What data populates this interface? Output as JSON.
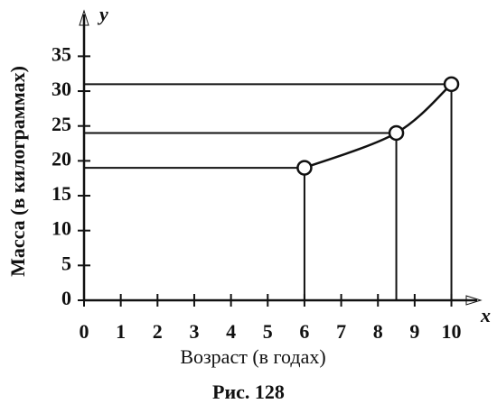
{
  "chart_data": {
    "type": "line",
    "caption": "Рис. 128",
    "x_axis_name": "x",
    "y_axis_name": "y",
    "x_label": "Возраст (в годах)",
    "y_label": "Масса (в килограммах)",
    "x": [
      6,
      8.5,
      10
    ],
    "values": [
      19,
      24,
      31
    ],
    "color": "#111111",
    "xlim": [
      0,
      10.7
    ],
    "ylim": [
      0,
      41
    ],
    "xticks": [
      0,
      1,
      2,
      3,
      4,
      5,
      6,
      7,
      8,
      9,
      10
    ],
    "yticks": [
      0,
      5,
      10,
      15,
      20,
      25,
      30,
      35
    ],
    "grid": false
  }
}
